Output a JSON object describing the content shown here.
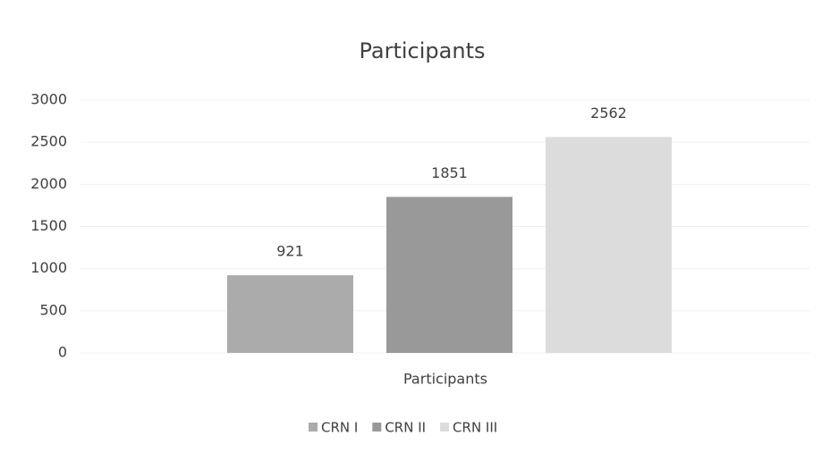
{
  "chart_data": {
    "type": "bar",
    "title": "Participants",
    "x_label": "Participants",
    "categories": [
      "Participants"
    ],
    "series": [
      {
        "name": "CRN I",
        "color": "#ababab",
        "values": [
          921
        ]
      },
      {
        "name": "CRN II",
        "color": "#999999",
        "values": [
          1851
        ]
      },
      {
        "name": "CRN III",
        "color": "#dcdcdc",
        "values": [
          2562
        ]
      }
    ],
    "ylim": [
      0,
      3000
    ],
    "yticks": [
      0,
      500,
      1000,
      1500,
      2000,
      2500,
      3000
    ],
    "grid": true,
    "legend": "bottom"
  }
}
